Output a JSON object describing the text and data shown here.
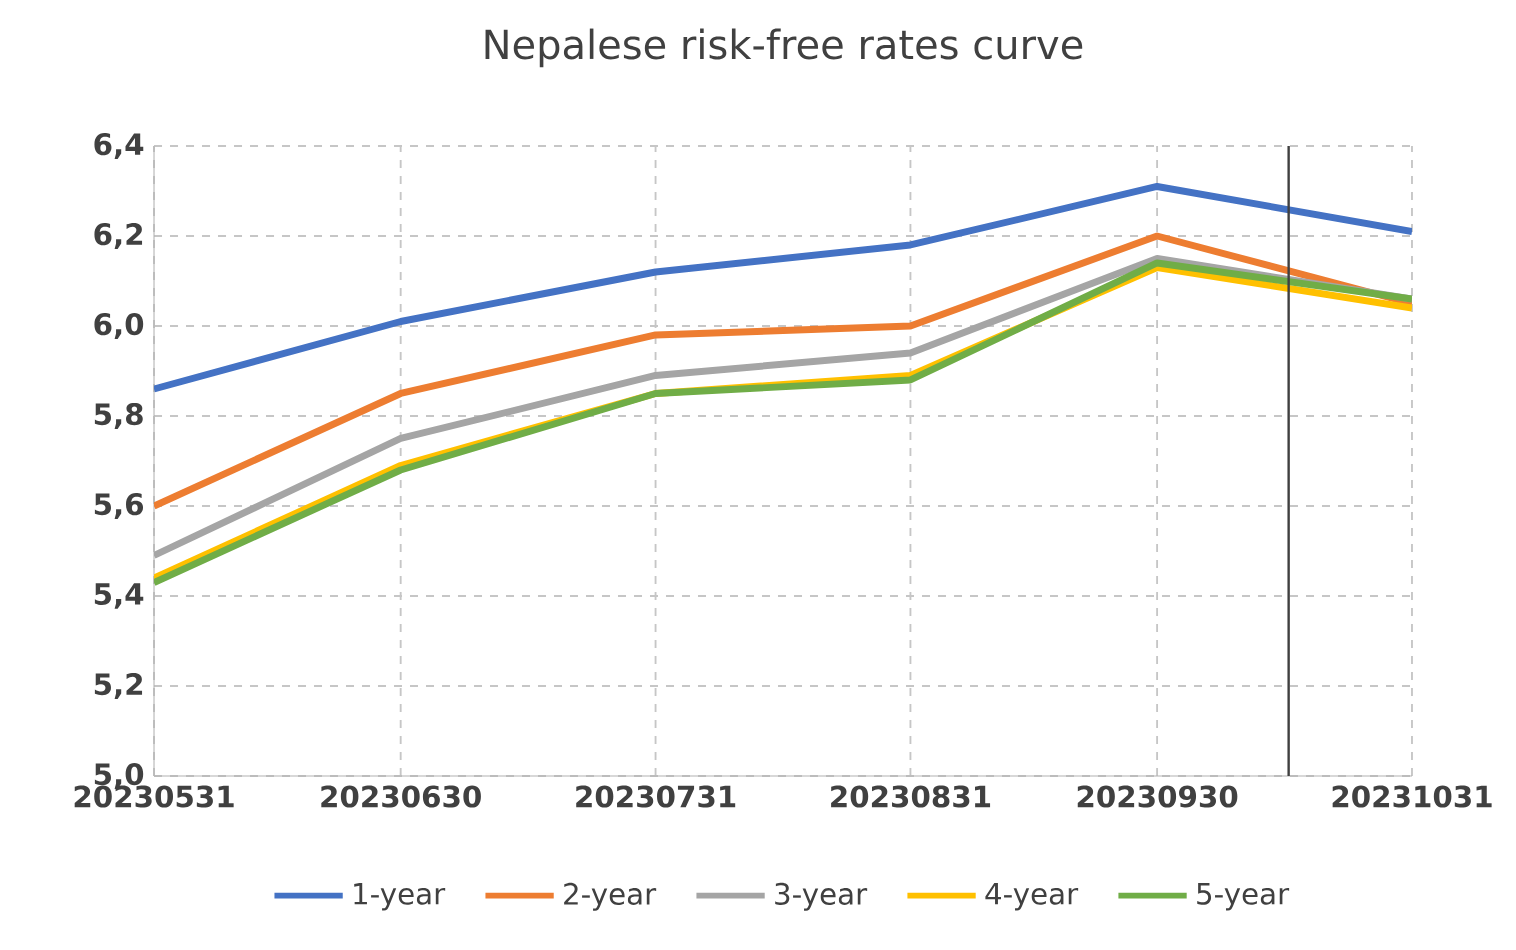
{
  "chart_data": {
    "type": "line",
    "title": "Nepalese risk-free rates curve",
    "x": [
      "2023-05-31",
      "2023-06-30",
      "2023-07-31",
      "2023-08-31",
      "2023-09-30",
      "2023-10-31"
    ],
    "series": [
      {
        "name": "1-year",
        "color": "#4472c4",
        "values": [
          5.86,
          6.01,
          6.12,
          6.18,
          6.31,
          6.21
        ]
      },
      {
        "name": "2-year",
        "color": "#ed7d31",
        "values": [
          5.6,
          5.85,
          5.98,
          6.0,
          6.2,
          6.05
        ]
      },
      {
        "name": "3-year",
        "color": "#a5a5a5",
        "values": [
          5.49,
          5.75,
          5.89,
          5.94,
          6.15,
          6.06
        ]
      },
      {
        "name": "4-year",
        "color": "#ffc000",
        "values": [
          5.44,
          5.69,
          5.85,
          5.89,
          6.13,
          6.04
        ]
      },
      {
        "name": "5-year",
        "color": "#70ad47",
        "values": [
          5.43,
          5.68,
          5.85,
          5.88,
          6.14,
          6.06
        ]
      }
    ],
    "xlim": [
      "2023-05-31",
      "2023-10-31"
    ],
    "xticks": [
      {
        "value": "2023-05-31",
        "label": "20230531"
      },
      {
        "value": "2023-06-30",
        "label": "20230630"
      },
      {
        "value": "2023-07-31",
        "label": "20230731"
      },
      {
        "value": "2023-08-31",
        "label": "20230831"
      },
      {
        "value": "2023-09-30",
        "label": "20230930"
      },
      {
        "value": "2023-10-31",
        "label": "20231031"
      }
    ],
    "ylim": [
      5.0,
      6.4
    ],
    "yticks": [
      {
        "value": 5.0,
        "label": "5,0"
      },
      {
        "value": 5.2,
        "label": "5,2"
      },
      {
        "value": 5.4,
        "label": "5,4"
      },
      {
        "value": 5.6,
        "label": "5,6"
      },
      {
        "value": 5.8,
        "label": "5,8"
      },
      {
        "value": 6.0,
        "label": "6,0"
      },
      {
        "value": 6.2,
        "label": "6,2"
      },
      {
        "value": 6.4,
        "label": "6,4"
      }
    ],
    "ref_lines": [
      {
        "axis": "x",
        "value": "2023-10-16",
        "color": "#404040"
      }
    ],
    "grid": true,
    "legend": "bottom",
    "marker": "none",
    "line_style": "solid"
  }
}
